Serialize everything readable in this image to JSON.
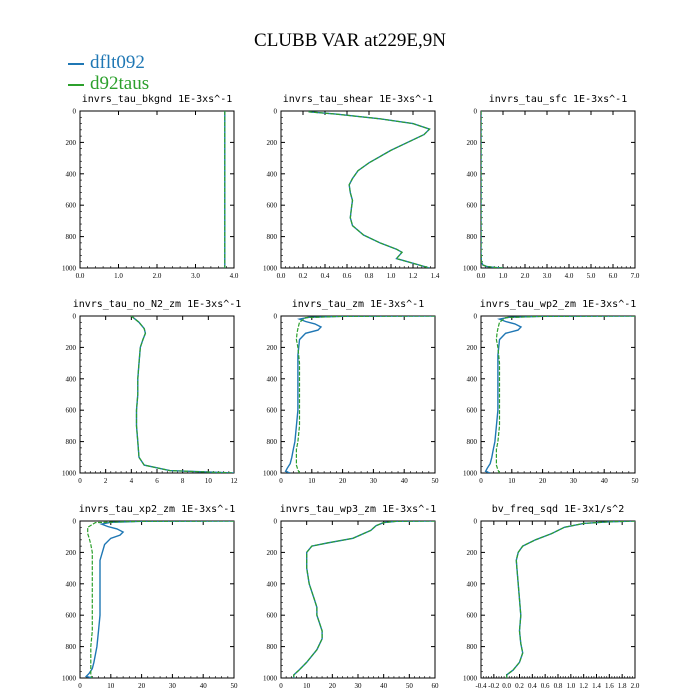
{
  "figure": {
    "title": "CLUBB VAR at229E,9N",
    "legend": [
      {
        "name": "dflt092",
        "color": "#1f77b4"
      },
      {
        "name": "d92taus",
        "color": "#2ca02c"
      }
    ]
  },
  "chart_data": [
    {
      "type": "line",
      "title": "invrs_tau_bkgnd   1E-3xs^-1",
      "xlim": [
        0,
        4
      ],
      "xticks": [
        "0.0",
        "1.0",
        "2.0",
        "3.0",
        "4.0"
      ],
      "ylim": [
        1000,
        0
      ],
      "yticks": [
        "0",
        "200",
        "400",
        "600",
        "800",
        "1000"
      ],
      "series": [
        {
          "name": "dflt092",
          "x": [
            3.76,
            3.76
          ],
          "y": [
            0,
            1000
          ]
        },
        {
          "name": "d92taus",
          "x": [
            3.76,
            3.76
          ],
          "y": [
            0,
            1000
          ]
        }
      ]
    },
    {
      "type": "line",
      "title": "invrs_tau_shear   1E-3xs^-1",
      "xlim": [
        0,
        1.4
      ],
      "xticks": [
        "0.0",
        "0.2",
        "0.4",
        "0.6",
        "0.8",
        "1.0",
        "1.2",
        "1.4"
      ],
      "ylim": [
        1000,
        0
      ],
      "yticks": [
        "0",
        "200",
        "400",
        "600",
        "800",
        "1000"
      ],
      "series": [
        {
          "name": "dflt092",
          "x": [
            0.25,
            0.5,
            0.9,
            1.2,
            1.35,
            1.3,
            1.0,
            0.8,
            0.7,
            0.65,
            0.62,
            0.63,
            0.65,
            0.64,
            0.63,
            0.65,
            0.75,
            0.9,
            1.05,
            1.1,
            1.05,
            1.15,
            1.35
          ],
          "y": [
            5,
            20,
            50,
            80,
            115,
            150,
            250,
            330,
            380,
            430,
            470,
            520,
            570,
            620,
            680,
            730,
            790,
            840,
            880,
            900,
            940,
            960,
            1000
          ]
        },
        {
          "name": "d92taus",
          "x": [
            0.25,
            0.5,
            0.9,
            1.2,
            1.35,
            1.3,
            1.0,
            0.8,
            0.7,
            0.65,
            0.62,
            0.63,
            0.65,
            0.64,
            0.63,
            0.65,
            0.75,
            0.9,
            1.05,
            1.1,
            1.05,
            1.15,
            1.35
          ],
          "y": [
            5,
            20,
            50,
            80,
            115,
            150,
            250,
            330,
            380,
            430,
            470,
            520,
            570,
            620,
            680,
            730,
            790,
            840,
            880,
            900,
            940,
            960,
            1000
          ]
        }
      ]
    },
    {
      "type": "line",
      "title": "invrs_tau_sfc   1E-3xs^-1",
      "xlim": [
        0,
        7
      ],
      "xticks": [
        "0.0",
        "1.0",
        "2.0",
        "3.0",
        "4.0",
        "5.0",
        "6.0",
        "7.0"
      ],
      "ylim": [
        1000,
        0
      ],
      "yticks": [
        "0",
        "200",
        "400",
        "600",
        "800",
        "1000"
      ],
      "series": [
        {
          "name": "dflt092",
          "x": [
            0.0,
            0.0,
            0.0,
            0.02,
            0.08,
            0.25,
            0.6,
            1.0
          ],
          "y": [
            0,
            600,
            900,
            960,
            980,
            990,
            996,
            1000
          ]
        },
        {
          "name": "d92taus",
          "x": [
            0.0,
            0.0,
            0.0,
            0.02,
            0.08,
            0.25,
            0.6,
            1.0
          ],
          "y": [
            0,
            600,
            900,
            960,
            980,
            990,
            996,
            1000
          ]
        }
      ]
    },
    {
      "type": "line",
      "title": "invrs_tau_no_N2_zm   1E-3xs^-1",
      "xlim": [
        0,
        12
      ],
      "xticks": [
        "0",
        "2",
        "4",
        "6",
        "8",
        "10",
        "12"
      ],
      "ylim": [
        1000,
        0
      ],
      "yticks": [
        "0",
        "200",
        "400",
        "600",
        "800",
        "1000"
      ],
      "series": [
        {
          "name": "dflt092",
          "x": [
            4.0,
            4.6,
            5.0,
            5.1,
            4.9,
            4.7,
            4.6,
            4.5,
            4.5,
            4.4,
            4.4,
            4.5,
            4.6,
            5.0,
            7.0,
            12.0
          ],
          "y": [
            0,
            40,
            80,
            110,
            150,
            200,
            300,
            400,
            500,
            600,
            700,
            800,
            900,
            950,
            985,
            1000
          ]
        },
        {
          "name": "d92taus",
          "x": [
            4.0,
            4.6,
            5.0,
            5.1,
            4.9,
            4.7,
            4.6,
            4.5,
            4.5,
            4.4,
            4.4,
            4.5,
            4.6,
            5.0,
            7.0,
            12.0
          ],
          "y": [
            0,
            40,
            80,
            110,
            150,
            200,
            300,
            400,
            500,
            600,
            700,
            800,
            900,
            950,
            985,
            1000
          ]
        }
      ]
    },
    {
      "type": "line",
      "title": "invrs_tau_zm   1E-3xs^-1",
      "xlim": [
        0,
        50
      ],
      "xticks": [
        "0",
        "10",
        "20",
        "30",
        "40",
        "50"
      ],
      "ylim": [
        1000,
        0
      ],
      "yticks": [
        "0",
        "200",
        "400",
        "600",
        "800",
        "1000"
      ],
      "series": [
        {
          "name": "dflt092",
          "x": [
            50,
            20,
            9,
            6,
            8,
            11,
            13,
            12,
            8,
            6,
            5.5,
            5.5,
            5.5,
            5.5,
            5,
            4.5,
            4,
            3.5,
            3,
            2,
            1.5,
            3
          ],
          "y": [
            0,
            2,
            8,
            20,
            35,
            50,
            70,
            90,
            110,
            150,
            250,
            400,
            500,
            600,
            700,
            800,
            850,
            900,
            940,
            970,
            990,
            1000
          ]
        },
        {
          "name": "d92taus",
          "x": [
            50,
            20,
            8,
            6,
            5.5,
            5.2,
            5,
            5.5,
            6,
            6,
            6,
            6,
            6,
            5.5,
            5,
            5,
            5,
            5.5,
            6
          ],
          "y": [
            0,
            2,
            10,
            40,
            80,
            110,
            150,
            200,
            300,
            400,
            500,
            600,
            700,
            800,
            850,
            900,
            950,
            980,
            1000
          ]
        }
      ]
    },
    {
      "type": "line",
      "title": "invrs_tau_wp2_zm   1E-3xs^-1",
      "xlim": [
        0,
        50
      ],
      "xticks": [
        "0",
        "10",
        "20",
        "30",
        "40",
        "50"
      ],
      "ylim": [
        1000,
        0
      ],
      "yticks": [
        "0",
        "200",
        "400",
        "600",
        "800",
        "1000"
      ],
      "series": [
        {
          "name": "dflt092",
          "x": [
            50,
            20,
            9,
            6,
            8,
            11,
            13,
            12,
            8,
            6,
            5.5,
            5.5,
            5.5,
            5.5,
            5,
            4.5,
            4,
            3.5,
            3,
            2,
            1.5,
            3
          ],
          "y": [
            0,
            2,
            8,
            20,
            35,
            50,
            70,
            90,
            110,
            150,
            250,
            400,
            500,
            600,
            700,
            800,
            850,
            900,
            940,
            970,
            990,
            1000
          ]
        },
        {
          "name": "d92taus",
          "x": [
            50,
            20,
            8,
            6,
            5.5,
            5.2,
            5,
            5.5,
            6,
            6,
            6,
            6,
            6,
            5.5,
            5,
            5,
            5,
            5.5,
            6
          ],
          "y": [
            0,
            2,
            10,
            40,
            80,
            110,
            150,
            200,
            300,
            400,
            500,
            600,
            700,
            800,
            850,
            900,
            950,
            980,
            1000
          ]
        }
      ]
    },
    {
      "type": "line",
      "title": "invrs_tau_xp2_zm   1E-3xs^-1",
      "xlim": [
        0,
        50
      ],
      "xticks": [
        "0",
        "10",
        "20",
        "30",
        "40",
        "50"
      ],
      "ylim": [
        1000,
        0
      ],
      "yticks": [
        "0",
        "200",
        "400",
        "600",
        "800",
        "1000"
      ],
      "series": [
        {
          "name": "dflt092",
          "x": [
            50,
            20,
            10,
            7,
            9,
            12,
            14,
            13,
            10,
            8,
            6.5,
            6.5,
            6.5,
            6.5,
            6,
            5.5,
            5,
            4.5,
            4,
            3,
            2,
            4
          ],
          "y": [
            0,
            2,
            8,
            20,
            35,
            50,
            70,
            90,
            110,
            150,
            250,
            400,
            500,
            600,
            700,
            800,
            850,
            900,
            940,
            970,
            990,
            1000
          ]
        },
        {
          "name": "d92taus",
          "x": [
            50,
            20,
            5,
            2.5,
            2.5,
            3,
            3.5,
            4,
            4,
            4,
            4,
            4,
            4,
            3.5,
            3.5,
            3.5,
            3.5,
            3.5,
            3.8
          ],
          "y": [
            0,
            2,
            10,
            40,
            80,
            110,
            150,
            200,
            300,
            400,
            500,
            600,
            700,
            800,
            850,
            900,
            950,
            980,
            1000
          ]
        }
      ]
    },
    {
      "type": "line",
      "title": "invrs_tau_wp3_zm   1E-3xs^-1",
      "xlim": [
        0,
        60
      ],
      "xticks": [
        "0",
        "10",
        "20",
        "30",
        "40",
        "50",
        "60"
      ],
      "ylim": [
        1000,
        0
      ],
      "yticks": [
        "0",
        "200",
        "400",
        "600",
        "800",
        "1000"
      ],
      "series": [
        {
          "name": "dflt092",
          "x": [
            60,
            45,
            40,
            37,
            35,
            28,
            18,
            12,
            10,
            10,
            11,
            13,
            14,
            14,
            15,
            16,
            16,
            14,
            10,
            7,
            5,
            5
          ],
          "y": [
            0,
            2,
            10,
            30,
            60,
            110,
            140,
            160,
            200,
            300,
            400,
            500,
            550,
            600,
            650,
            700,
            750,
            820,
            900,
            950,
            980,
            1000
          ]
        },
        {
          "name": "d92taus",
          "x": [
            60,
            45,
            40,
            37,
            35,
            28,
            18,
            12,
            10,
            10,
            11,
            13,
            14,
            14,
            15,
            16,
            16,
            14,
            10,
            7,
            5,
            5
          ],
          "y": [
            0,
            2,
            10,
            30,
            60,
            110,
            140,
            160,
            200,
            300,
            400,
            500,
            550,
            600,
            650,
            700,
            750,
            820,
            900,
            950,
            980,
            1000
          ]
        }
      ]
    },
    {
      "type": "line",
      "title": "bv_freq_sqd   1E-3x1/s^2",
      "xlim": [
        -0.4,
        2.0
      ],
      "xticks": [
        "-0.4",
        "-0.2",
        "0.0",
        "0.2",
        "0.4",
        "0.6",
        "0.8",
        "1.0",
        "1.2",
        "1.4",
        "1.6",
        "1.8",
        "2.0"
      ],
      "ylim": [
        1000,
        0
      ],
      "yticks": [
        "0",
        "200",
        "400",
        "600",
        "800",
        "1000"
      ],
      "series": [
        {
          "name": "dflt092",
          "x": [
            2.0,
            1.6,
            1.2,
            0.9,
            0.7,
            0.45,
            0.25,
            0.18,
            0.15,
            0.16,
            0.18,
            0.2,
            0.22,
            0.2,
            0.22,
            0.25,
            0.2,
            0.1,
            0.0,
            0.0
          ],
          "y": [
            0,
            5,
            15,
            40,
            80,
            120,
            160,
            200,
            250,
            300,
            400,
            500,
            600,
            700,
            780,
            840,
            900,
            950,
            980,
            1000
          ]
        },
        {
          "name": "d92taus",
          "x": [
            2.0,
            1.6,
            1.2,
            0.9,
            0.7,
            0.45,
            0.25,
            0.18,
            0.15,
            0.16,
            0.18,
            0.2,
            0.22,
            0.2,
            0.22,
            0.25,
            0.2,
            0.1,
            0.0,
            0.0
          ],
          "y": [
            0,
            5,
            15,
            40,
            80,
            120,
            160,
            200,
            250,
            300,
            400,
            500,
            600,
            700,
            780,
            840,
            900,
            950,
            980,
            1000
          ]
        }
      ]
    }
  ]
}
